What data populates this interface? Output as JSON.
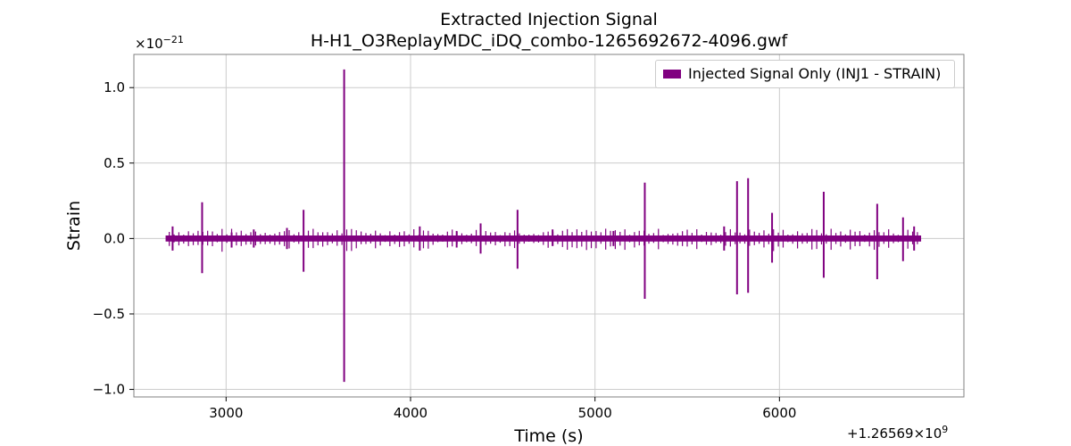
{
  "chart_data": {
    "type": "line",
    "title": "Extracted Injection Signal",
    "subtitle": "H-H1_O3ReplayMDC_iDQ_combo-1265692672-4096.gwf",
    "xlabel": "Time (s)",
    "ylabel": "Strain",
    "x_offset_label": "+1.26569×10",
    "x_offset_exponent": "9",
    "y_multiplier_label": "×10",
    "y_multiplier_exponent": "−21",
    "xlim": [
      2500,
      7000
    ],
    "ylim": [
      -1.05,
      1.22
    ],
    "x_ticks": [
      3000,
      4000,
      5000,
      6000
    ],
    "x_tick_labels": [
      "3000",
      "4000",
      "5000",
      "6000"
    ],
    "y_ticks": [
      1.0,
      0.5,
      0.0,
      -0.5,
      -1.0
    ],
    "y_tick_labels": [
      "1.0",
      "0.5",
      "0.0",
      "−0.5",
      "−1.0"
    ],
    "grid": true,
    "legend_position": "top-right",
    "series": [
      {
        "name": "Injected Signal Only (INJ1 - STRAIN)",
        "color": "#800080",
        "baseline_range": [
          2672,
          6768
        ],
        "baseline_amplitude": 0.02,
        "spikes": [
          {
            "x": 2710,
            "max": 0.08,
            "min": -0.08
          },
          {
            "x": 2870,
            "max": 0.24,
            "min": -0.23
          },
          {
            "x": 3030,
            "max": 0.04,
            "min": -0.06
          },
          {
            "x": 3150,
            "max": 0.06,
            "min": -0.06
          },
          {
            "x": 3330,
            "max": 0.07,
            "min": -0.07
          },
          {
            "x": 3420,
            "max": 0.19,
            "min": -0.22
          },
          {
            "x": 3640,
            "max": 1.12,
            "min": -0.95
          },
          {
            "x": 4050,
            "max": 0.08,
            "min": -0.08
          },
          {
            "x": 4250,
            "max": 0.05,
            "min": -0.06
          },
          {
            "x": 4380,
            "max": 0.1,
            "min": -0.1
          },
          {
            "x": 4580,
            "max": 0.19,
            "min": -0.2
          },
          {
            "x": 4770,
            "max": 0.06,
            "min": -0.05
          },
          {
            "x": 5100,
            "max": 0.05,
            "min": -0.05
          },
          {
            "x": 5270,
            "max": 0.37,
            "min": -0.4
          },
          {
            "x": 5700,
            "max": 0.08,
            "min": -0.08
          },
          {
            "x": 5770,
            "max": 0.38,
            "min": -0.37
          },
          {
            "x": 5830,
            "max": 0.4,
            "min": -0.36
          },
          {
            "x": 5960,
            "max": 0.17,
            "min": -0.16
          },
          {
            "x": 6240,
            "max": 0.31,
            "min": -0.26
          },
          {
            "x": 6530,
            "max": 0.23,
            "min": -0.27
          },
          {
            "x": 6670,
            "max": 0.14,
            "min": -0.15
          },
          {
            "x": 6730,
            "max": 0.08,
            "min": -0.08
          }
        ]
      }
    ]
  }
}
